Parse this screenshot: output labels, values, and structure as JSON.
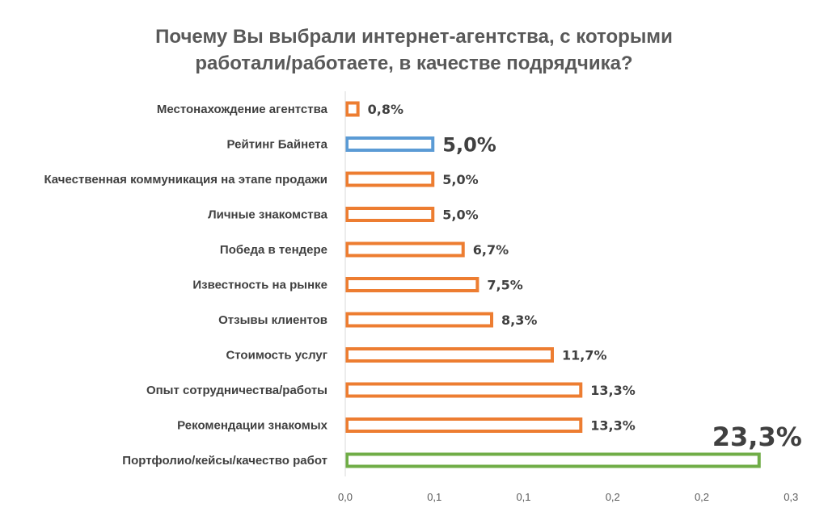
{
  "chart_data": {
    "type": "bar",
    "orientation": "horizontal",
    "title_lines": [
      "Почему Вы выбрали интернет-агентства, с которыми",
      "работали/работаете, в качестве подрядчика?"
    ],
    "categories": [
      "Местонахождение агентства",
      "Рейтинг Байнета",
      "Качественная коммуникация на этапе продажи",
      "Личные знакомства",
      "Победа в тендере",
      "Известность на рынке",
      "Отзывы клиентов",
      "Стоимость услуг",
      "Опыт сотрудничества/работы",
      "Рекомендации знакомых",
      "Портфолио/кейсы/качество работ"
    ],
    "values": [
      0.008,
      0.05,
      0.05,
      0.05,
      0.067,
      0.075,
      0.083,
      0.117,
      0.133,
      0.133,
      0.233
    ],
    "data_labels": [
      "0,8%",
      "5,0%",
      "5,0%",
      "5,0%",
      "6,7%",
      "7,5%",
      "8,3%",
      "11,7%",
      "13,3%",
      "13,3%",
      "23,3%"
    ],
    "bar_colors": [
      "#ED7D31",
      "#5B9BD5",
      "#ED7D31",
      "#ED7D31",
      "#ED7D31",
      "#ED7D31",
      "#ED7D31",
      "#ED7D31",
      "#ED7D31",
      "#ED7D31",
      "#70AD47"
    ],
    "emphasized_labels": [
      1,
      10
    ],
    "xlim": [
      0,
      0.25
    ],
    "x_ticks": [
      0,
      0.05,
      0.1,
      0.15,
      0.2,
      0.25
    ],
    "x_tick_labels": [
      "0,0",
      "0,1",
      "0,1",
      "0,2",
      "0,2",
      "0,3"
    ],
    "xlabel": "",
    "ylabel": "",
    "grid": false,
    "legend": "none"
  }
}
